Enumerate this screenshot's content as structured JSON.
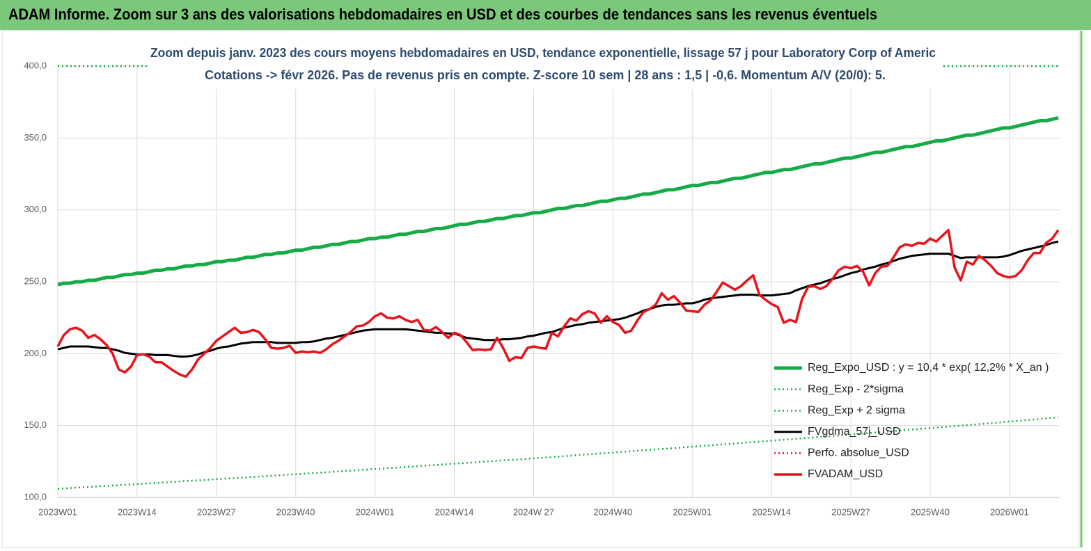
{
  "header": {
    "title": "ADAM Informe. Zoom sur 3 ans des valorisations hebdomadaires en USD et des courbes de tendances sans les revenus éventuels"
  },
  "chart_data": {
    "type": "line",
    "title": "Zoom depuis janv. 2023 des cours moyens hebdomadaires en USD, tendance exponentielle, lissage 57 j pour Laboratory Corp of Americ",
    "subtitle": "Cotations -> févr 2026. Pas de revenus pris en compte. Z-score 10 sem  | 28 ans : 1,5 | -0,6. Momentum A/V (20/0): 5.",
    "grid": true,
    "ylim": [
      100,
      400
    ],
    "yticks": [
      {
        "value": 100,
        "label": "100,0"
      },
      {
        "value": 150,
        "label": "150,0"
      },
      {
        "value": 200,
        "label": "200,0"
      },
      {
        "value": 250,
        "label": "250,0"
      },
      {
        "value": 300,
        "label": "300,0"
      },
      {
        "value": 350,
        "label": "350,0"
      },
      {
        "value": 400,
        "label": "400,0"
      }
    ],
    "categories": [
      "2023W01",
      null,
      null,
      null,
      null,
      null,
      null,
      null,
      null,
      null,
      null,
      null,
      null,
      "2023W14",
      null,
      null,
      null,
      null,
      null,
      null,
      null,
      null,
      null,
      null,
      null,
      null,
      "2023W27",
      null,
      null,
      null,
      null,
      null,
      null,
      null,
      null,
      null,
      null,
      null,
      null,
      "2023W40",
      null,
      null,
      null,
      null,
      null,
      null,
      null,
      null,
      null,
      null,
      null,
      null,
      "2024W01",
      null,
      null,
      null,
      null,
      null,
      null,
      null,
      null,
      null,
      null,
      null,
      null,
      "2024W14",
      null,
      null,
      null,
      null,
      null,
      null,
      null,
      null,
      null,
      null,
      null,
      null,
      "2024W 27",
      null,
      null,
      null,
      null,
      null,
      null,
      null,
      null,
      null,
      null,
      null,
      null,
      "2024W40",
      null,
      null,
      null,
      null,
      null,
      null,
      null,
      null,
      null,
      null,
      null,
      null,
      "2025W01",
      null,
      null,
      null,
      null,
      null,
      null,
      null,
      null,
      null,
      null,
      null,
      null,
      "2025W14",
      null,
      null,
      null,
      null,
      null,
      null,
      null,
      null,
      null,
      null,
      null,
      null,
      "2025W27",
      null,
      null,
      null,
      null,
      null,
      null,
      null,
      null,
      null,
      null,
      null,
      null,
      "2025W40",
      null,
      null,
      null,
      null,
      null,
      null,
      null,
      null,
      null,
      null,
      null,
      null,
      "2026W01",
      null,
      null,
      null,
      null,
      null,
      null,
      null,
      null
    ],
    "series": [
      {
        "name": "Reg_Expo_USD : y = 10,4 * exp( 12,2% * X_an )",
        "color": "#17ab48",
        "style": "solid",
        "width": 5,
        "values": [
          248,
          249,
          249,
          250,
          250,
          251,
          251,
          252,
          253,
          253,
          254,
          255,
          255,
          256,
          256,
          257,
          258,
          258,
          259,
          259,
          260,
          261,
          261,
          262,
          262,
          263,
          264,
          264,
          265,
          265,
          266,
          267,
          267,
          268,
          269,
          269,
          270,
          270,
          271,
          272,
          272,
          273,
          274,
          274,
          275,
          276,
          276,
          277,
          278,
          278,
          279,
          280,
          280,
          281,
          281,
          282,
          283,
          283,
          284,
          285,
          285,
          286,
          287,
          287,
          288,
          289,
          290,
          290,
          291,
          292,
          292,
          293,
          294,
          294,
          295,
          296,
          296,
          297,
          298,
          298,
          299,
          300,
          301,
          301,
          302,
          303,
          303,
          304,
          305,
          306,
          306,
          307,
          308,
          308,
          309,
          310,
          311,
          311,
          312,
          313,
          314,
          314,
          315,
          316,
          317,
          317,
          318,
          319,
          319,
          320,
          321,
          322,
          322,
          323,
          324,
          325,
          326,
          326,
          327,
          328,
          328,
          329,
          330,
          331,
          332,
          332,
          333,
          334,
          335,
          336,
          336,
          337,
          338,
          339,
          340,
          340,
          341,
          342,
          343,
          344,
          344,
          345,
          346,
          347,
          348,
          348,
          349,
          350,
          351,
          352,
          352,
          353,
          354,
          355,
          356,
          357,
          357,
          358,
          359,
          360,
          361,
          362,
          362,
          363,
          364
        ]
      },
      {
        "name": "Reg_Exp - 2*sigma",
        "color": "#17ab48",
        "style": "dotted",
        "width": 2.5,
        "values": [
          106.0,
          106.3,
          106.5,
          106.8,
          107.0,
          107.3,
          107.5,
          107.8,
          108.0,
          108.3,
          108.5,
          108.8,
          109.0,
          109.3,
          109.5,
          109.8,
          110.1,
          110.3,
          110.6,
          110.8,
          111.1,
          111.4,
          111.6,
          111.9,
          112.1,
          112.4,
          112.7,
          112.9,
          113.2,
          113.4,
          113.7,
          114.0,
          114.3,
          114.5,
          114.8,
          115.1,
          115.3,
          115.6,
          115.9,
          116.1,
          116.4,
          116.7,
          117.0,
          117.2,
          117.5,
          117.8,
          118.1,
          118.4,
          118.6,
          118.9,
          119.2,
          119.5,
          119.8,
          120.0,
          120.3,
          120.6,
          120.9,
          121.2,
          121.4,
          121.7,
          122.0,
          122.3,
          122.6,
          122.9,
          123.2,
          123.5,
          123.7,
          124.0,
          124.3,
          124.6,
          124.9,
          125.2,
          125.5,
          125.8,
          126.1,
          126.4,
          126.6,
          126.9,
          127.2,
          127.5,
          127.8,
          128.1,
          128.4,
          128.7,
          129.0,
          129.4,
          129.7,
          130.0,
          130.3,
          130.6,
          130.9,
          131.2,
          131.5,
          131.8,
          132.1,
          132.5,
          132.8,
          133.1,
          133.4,
          133.7,
          134.0,
          134.3,
          134.6,
          135.0,
          135.3,
          135.6,
          135.9,
          136.2,
          136.6,
          136.9,
          137.2,
          137.5,
          137.8,
          138.2,
          138.5,
          138.8,
          139.1,
          139.4,
          139.8,
          140.1,
          140.4,
          140.7,
          141.1,
          141.4,
          141.7,
          142.1,
          142.4,
          142.7,
          143.0,
          143.4,
          143.7,
          144.1,
          144.4,
          144.8,
          145.1,
          145.5,
          145.8,
          146.2,
          146.5,
          146.9,
          147.2,
          147.5,
          147.9,
          148.2,
          148.6,
          148.9,
          149.2,
          149.6,
          149.9,
          150.3,
          150.6,
          151.0,
          151.3,
          151.7,
          152.0,
          152.4,
          152.8,
          153.1,
          153.5,
          153.8,
          154.2,
          154.6,
          155.0,
          155.4,
          155.8
        ]
      },
      {
        "name": "Reg_Exp + 2 sigma",
        "color": "#17ab48",
        "style": "dotted",
        "width": 2.5
      },
      {
        "name": "FVgdma_57j_USD",
        "color": "#000000",
        "style": "solid",
        "width": 3,
        "values": [
          203,
          204,
          205,
          205,
          205,
          205,
          204.5,
          204,
          204,
          203,
          202,
          200.5,
          200,
          199.5,
          199.5,
          199.5,
          199,
          199,
          199,
          198.5,
          198,
          198,
          198.5,
          199.5,
          201,
          202,
          203.5,
          204.5,
          205,
          206,
          207,
          207.5,
          208,
          208,
          208,
          208,
          207.5,
          207.5,
          207.5,
          207.5,
          208,
          208,
          208.5,
          209.5,
          210.5,
          211,
          212,
          213,
          214,
          215,
          216,
          216.5,
          217,
          217,
          217,
          217,
          217,
          217,
          216.5,
          216,
          215.5,
          215,
          214.5,
          214.5,
          214,
          214,
          212.5,
          211,
          210.5,
          210,
          209.5,
          209.5,
          209.5,
          210,
          210,
          210.5,
          211,
          212,
          212.5,
          213.5,
          214.5,
          215,
          216.5,
          218,
          219,
          220,
          220.5,
          221.5,
          222,
          222.5,
          223,
          223.5,
          224,
          225,
          226.5,
          228,
          230,
          231,
          232.5,
          233.5,
          234,
          234,
          234.5,
          235,
          235,
          236,
          237.5,
          238.5,
          239,
          239.5,
          240,
          240.5,
          241,
          241,
          241,
          240.5,
          240.5,
          240.5,
          241,
          241.5,
          242,
          244,
          245.5,
          247,
          248,
          249,
          250.5,
          252,
          253,
          254.5,
          256,
          257,
          258.5,
          259.5,
          260.5,
          262,
          263,
          264.5,
          266,
          267,
          268,
          268.5,
          269,
          269.5,
          269.5,
          269.5,
          269.5,
          268,
          266.5,
          267,
          267,
          267,
          267,
          267,
          267,
          267.5,
          268.5,
          270,
          271.5,
          272.5,
          273.5,
          274.5,
          275.5,
          277,
          278
        ]
      },
      {
        "name": "Perfo. absolue_USD",
        "color": "#e8131b",
        "style": "dotted",
        "width": 2.5
      },
      {
        "name": "FVADAM_USD",
        "color": "#e8131b",
        "style": "solid",
        "width": 3.5,
        "values": [
          205,
          213,
          217,
          218,
          216,
          211,
          213,
          210,
          206,
          200,
          189,
          187,
          191,
          199,
          199.5,
          198,
          194,
          194,
          191,
          188,
          185.5,
          184,
          189,
          196,
          200,
          204,
          209,
          212,
          215,
          218,
          214.5,
          215,
          216.5,
          215,
          210,
          204,
          203.5,
          204,
          205.5,
          200.5,
          201.5,
          201,
          201.5,
          200.5,
          203,
          206.5,
          209,
          212,
          215,
          219,
          219.5,
          222,
          226,
          228,
          225,
          224.5,
          226,
          223.5,
          222,
          223.5,
          216.5,
          216,
          218.5,
          215,
          211,
          214.5,
          213,
          208,
          202.5,
          203,
          202.5,
          203,
          211,
          204,
          195,
          197.5,
          197,
          204,
          205,
          204,
          203.5,
          214.5,
          212,
          219,
          224.5,
          223,
          227.5,
          229.5,
          228,
          221.5,
          226,
          222,
          220,
          214.5,
          216,
          223,
          229,
          231,
          234,
          242,
          237.5,
          240,
          235.5,
          230,
          229.5,
          229,
          234,
          237,
          243,
          249.5,
          247,
          244.5,
          247,
          251,
          254.5,
          241,
          237.5,
          234.5,
          232.5,
          221.5,
          223.5,
          222,
          238,
          246.5,
          247,
          245,
          247,
          252,
          258,
          260.5,
          259.5,
          261,
          257,
          247.5,
          256,
          260.5,
          261,
          267,
          274,
          276,
          275,
          277,
          276.5,
          280,
          278,
          282,
          286,
          260,
          251,
          264,
          262,
          268,
          265,
          261,
          256,
          254,
          253,
          254,
          258,
          265,
          270,
          270,
          277,
          280,
          286
        ]
      }
    ]
  }
}
